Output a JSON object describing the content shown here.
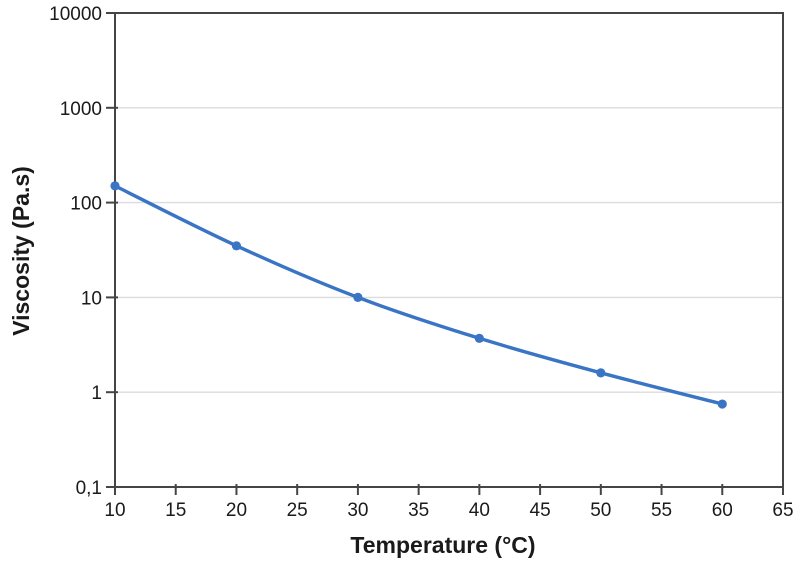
{
  "chart_data": {
    "type": "line",
    "title": "",
    "xlabel": "Temperature (°C)",
    "ylabel": "Viscosity (Pa.s)",
    "series": [
      {
        "name": "Viscosity",
        "x": [
          10,
          20,
          30,
          40,
          50,
          60
        ],
        "y": [
          150,
          35,
          10,
          3.7,
          1.6,
          0.75
        ]
      }
    ],
    "x_ticks": [
      {
        "value": 10,
        "label": "10"
      },
      {
        "value": 15,
        "label": "15"
      },
      {
        "value": 20,
        "label": "20"
      },
      {
        "value": 25,
        "label": "25"
      },
      {
        "value": 30,
        "label": "30"
      },
      {
        "value": 35,
        "label": "35"
      },
      {
        "value": 40,
        "label": "40"
      },
      {
        "value": 45,
        "label": "45"
      },
      {
        "value": 50,
        "label": "50"
      },
      {
        "value": 55,
        "label": "55"
      },
      {
        "value": 60,
        "label": "60"
      },
      {
        "value": 65,
        "label": "65"
      }
    ],
    "y_ticks": [
      {
        "value": 0.1,
        "label": "0,1"
      },
      {
        "value": 1,
        "label": "1"
      },
      {
        "value": 10,
        "label": "10"
      },
      {
        "value": 100,
        "label": "100"
      },
      {
        "value": 1000,
        "label": "1000"
      },
      {
        "value": 10000,
        "label": "10000"
      }
    ],
    "xlim": [
      10,
      65
    ],
    "ylim": [
      0.1,
      10000
    ],
    "y_scale": "log",
    "grid": true,
    "smooth": true,
    "legend": "none",
    "colors": {
      "series": "#3A74C4",
      "gridline": "#DCDCDC",
      "axis": "#454545",
      "tick_text": "#1A1A1A"
    }
  }
}
